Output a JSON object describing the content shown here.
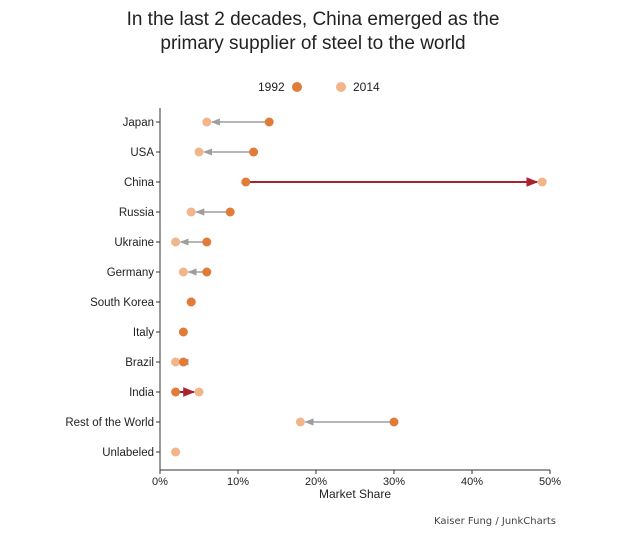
{
  "title": {
    "line1": "In the last 2 decades, China emerged as the",
    "line2": "primary supplier of steel to the world"
  },
  "credit": "Kaiser Fung / JunkCharts",
  "chart_data": {
    "type": "dumbbell",
    "title": "In the last 2 decades, China emerged as the primary supplier of steel to the world",
    "xlabel": "Market Share",
    "xlim": [
      0,
      50
    ],
    "xticks": [
      0,
      10,
      20,
      30,
      40,
      50
    ],
    "xtick_labels": [
      "0%",
      "10%",
      "20%",
      "30%",
      "40%",
      "50%"
    ],
    "legend": {
      "placement": "top-center",
      "entries": [
        {
          "label": "1992",
          "color": "#e07b39"
        },
        {
          "label": "2014",
          "color": "#f2b48a"
        }
      ]
    },
    "categories": [
      "Japan",
      "USA",
      "China",
      "Russia",
      "Ukraine",
      "Germany",
      "South Korea",
      "Italy",
      "Brazil",
      "India",
      "Rest of the World",
      "Unlabeled"
    ],
    "series": [
      {
        "name": "1992",
        "values": [
          14,
          12,
          11,
          9,
          6,
          6,
          4,
          3,
          3,
          2,
          30,
          null
        ]
      },
      {
        "name": "2014",
        "values": [
          6,
          5,
          49,
          4,
          2,
          3,
          4,
          null,
          2,
          5,
          18,
          2
        ]
      }
    ],
    "highlight_color": "#a8232f",
    "neutral_arrow_color": "#9e9e9e"
  }
}
